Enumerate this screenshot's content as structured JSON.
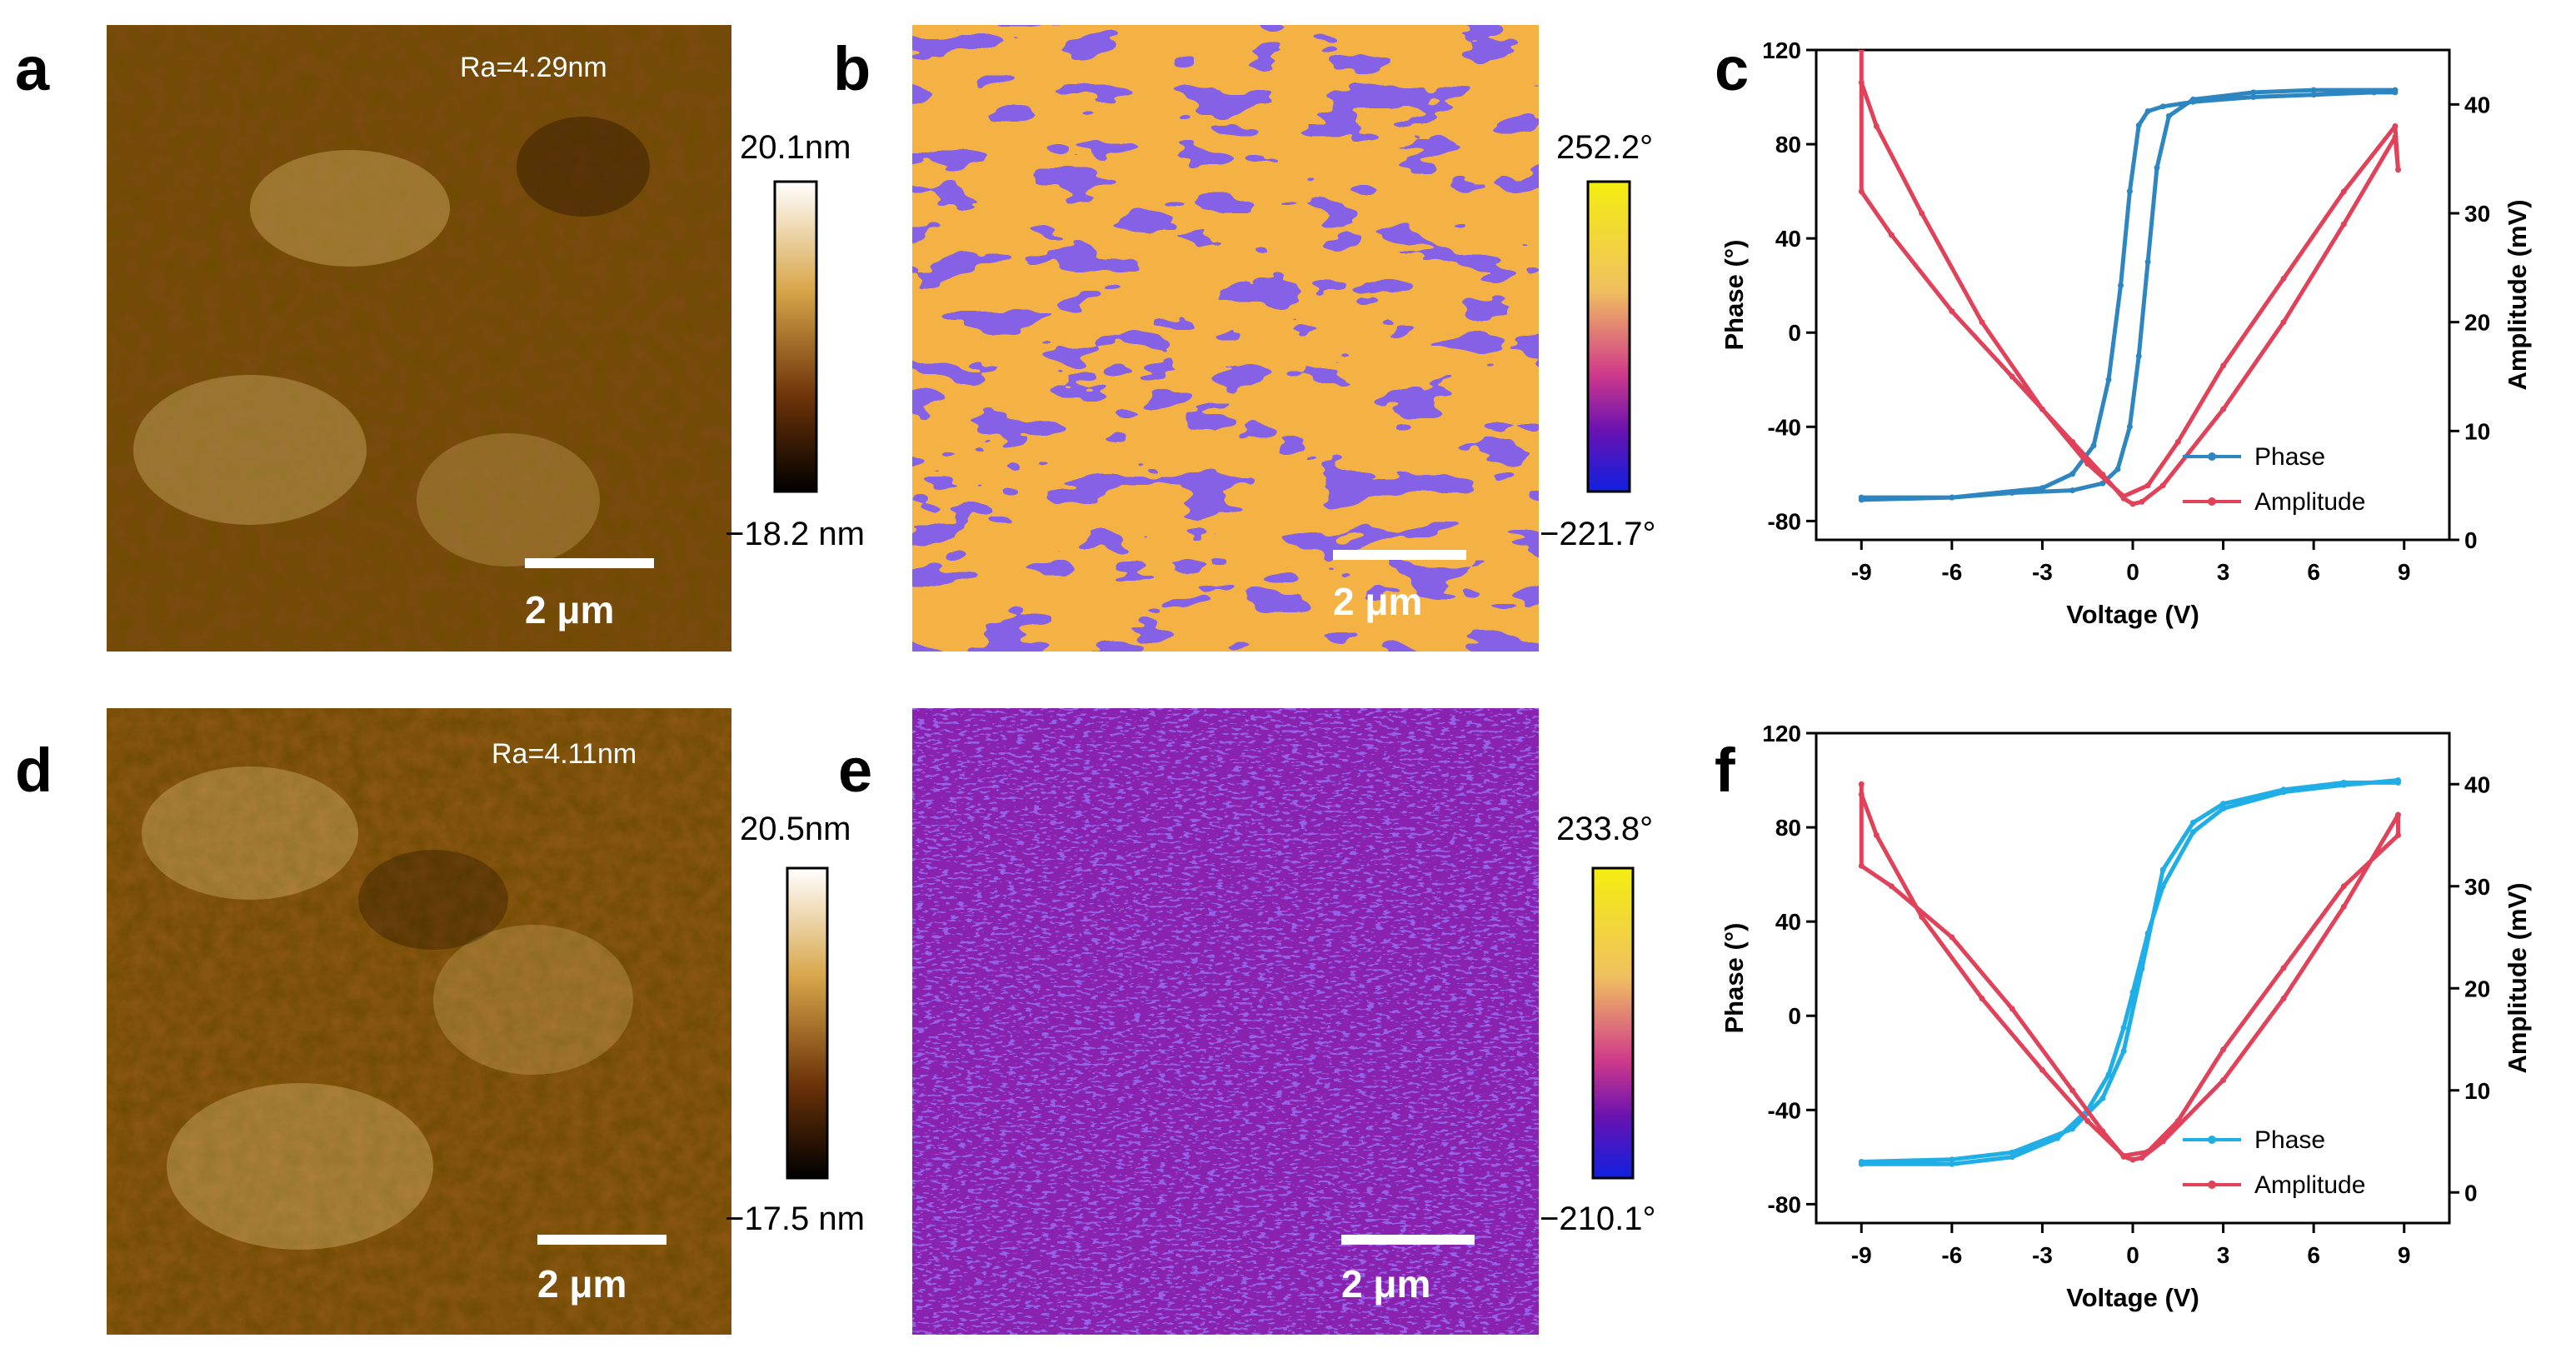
{
  "colors": {
    "phase_c": "#2e86c1",
    "amp_c": "#e0425a",
    "phase_f": "#20aee6",
    "amp_f": "#e0425a",
    "afm_dark": "#2a1200",
    "afm_light": "#f6e6b8",
    "pfm_orange": "#f6b448",
    "pfm_blue": "#3a1fc8",
    "pfm_purple": "#7a1fb0",
    "pfm_yellow": "#f2e63a"
  },
  "panels": {
    "a": {
      "letter": "a",
      "ra": "Ra=4.29nm",
      "cb_max": "20.1nm",
      "cb_min": "−18.2 nm",
      "scale": "2 μm"
    },
    "b": {
      "letter": "b",
      "cb_max": "252.2°",
      "cb_min": "−221.7°",
      "scale": "2 μm"
    },
    "c": {
      "letter": "c"
    },
    "d": {
      "letter": "d",
      "ra": "Ra=4.11nm",
      "cb_max": "20.5nm",
      "cb_min": "−17.5 nm",
      "scale": "2 μm"
    },
    "e": {
      "letter": "e",
      "cb_max": "233.8°",
      "cb_min": "−210.1°",
      "scale": "2 μm"
    },
    "f": {
      "letter": "f"
    }
  },
  "chart_data": [
    {
      "panel": "c",
      "type": "line",
      "xlabel": "Voltage (V)",
      "ylabel": "Phase (°)",
      "y2label": "Amplitude (mV)",
      "xlim": [
        -10.5,
        10.5
      ],
      "ylim": [
        -88,
        120
      ],
      "y2lim": [
        0,
        45
      ],
      "xticks": [
        -9,
        -6,
        -3,
        0,
        3,
        6,
        9
      ],
      "yticks": [
        -80,
        -40,
        0,
        40,
        80,
        120
      ],
      "y2ticks": [
        0,
        10,
        20,
        30,
        40
      ],
      "legend": [
        "Phase",
        "Amplitude"
      ],
      "series": [
        {
          "name": "Phase",
          "axis": "left",
          "x": [
            -9,
            -6,
            -3,
            -2,
            -1.3,
            -0.8,
            -0.4,
            -0.1,
            0.2,
            0.5,
            1,
            2,
            4,
            6,
            8,
            8.7,
            8.7,
            6,
            4,
            2,
            1.2,
            0.8,
            0.5,
            0.2,
            -0.1,
            -0.5,
            -1,
            -2,
            -4,
            -6,
            -9
          ],
          "y": [
            -71,
            -70,
            -66,
            -60,
            -48,
            -20,
            20,
            60,
            88,
            94,
            96,
            98,
            100,
            101,
            102,
            102,
            103,
            103,
            102,
            99,
            92,
            70,
            30,
            -10,
            -40,
            -58,
            -64,
            -67,
            -68,
            -70,
            -70
          ]
        },
        {
          "name": "Amplitude",
          "axis": "right",
          "x": [
            -9,
            -9,
            -8,
            -6,
            -4,
            -2,
            -1,
            -0.3,
            0,
            0.3,
            1,
            3,
            5,
            7,
            8.7,
            8.8,
            8.7,
            7,
            5,
            3,
            1.5,
            0.5,
            -0.3,
            -1.5,
            -3,
            -5,
            -7,
            -8.5,
            -9
          ],
          "y": [
            45,
            32,
            28,
            21,
            15,
            9,
            6,
            3.8,
            3.3,
            3.5,
            5,
            12,
            20,
            29,
            37,
            34,
            38,
            32,
            24,
            16,
            9,
            5,
            4,
            7,
            12,
            20,
            30,
            38,
            42
          ]
        }
      ]
    },
    {
      "panel": "f",
      "type": "line",
      "xlabel": "Voltage (V)",
      "ylabel": "Phase (°)",
      "y2label": "Amplitude (mV)",
      "xlim": [
        -10.5,
        10.5
      ],
      "ylim": [
        -88,
        120
      ],
      "y2lim": [
        -3,
        45
      ],
      "xticks": [
        -9,
        -6,
        -3,
        0,
        3,
        6,
        9
      ],
      "yticks": [
        -80,
        -40,
        0,
        40,
        80,
        120
      ],
      "y2ticks": [
        0,
        10,
        20,
        30,
        40
      ],
      "legend": [
        "Phase",
        "Amplitude"
      ],
      "series": [
        {
          "name": "Phase",
          "axis": "left",
          "x": [
            -9,
            -6,
            -4,
            -2.5,
            -1.5,
            -0.8,
            -0.3,
            0,
            0.5,
            1,
            2,
            3,
            5,
            7,
            8.8,
            8.8,
            7,
            5,
            3,
            2,
            1,
            0.3,
            -0.3,
            -1,
            -2,
            -4,
            -6,
            -9
          ],
          "y": [
            -63,
            -63,
            -60,
            -52,
            -40,
            -25,
            -5,
            10,
            35,
            55,
            78,
            88,
            95,
            98,
            100,
            99,
            99,
            96,
            90,
            82,
            62,
            20,
            -15,
            -35,
            -48,
            -58,
            -61,
            -62
          ]
        },
        {
          "name": "Amplitude",
          "axis": "right",
          "x": [
            -9,
            -9,
            -8,
            -6,
            -4,
            -2,
            -1,
            -0.3,
            0,
            0.3,
            1,
            3,
            5,
            7,
            8.8,
            8.8,
            7,
            5,
            3,
            1.5,
            0.5,
            -0.3,
            -1.5,
            -3,
            -5,
            -7,
            -8.5,
            -9
          ],
          "y": [
            40,
            32,
            30,
            25,
            18,
            10,
            6,
            3.5,
            3.2,
            3.4,
            5,
            11,
            19,
            28,
            37,
            35,
            30,
            22,
            14,
            7,
            4,
            3.6,
            7,
            12,
            19,
            27,
            35,
            39
          ]
        }
      ]
    }
  ]
}
